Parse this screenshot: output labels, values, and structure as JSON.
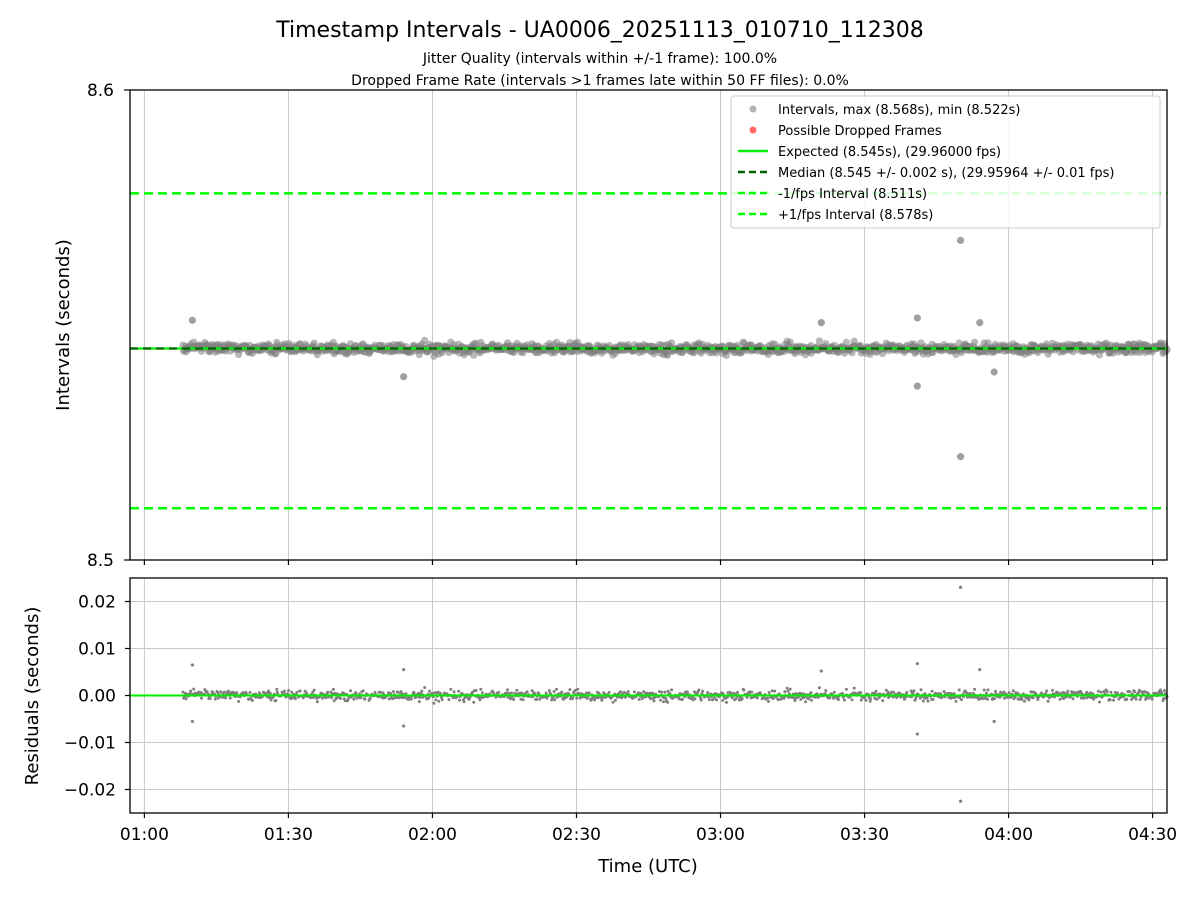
{
  "chart_data": [
    {
      "type": "scatter",
      "title": "Timestamp Intervals - UA0006_20251113_010710_112308",
      "subtitle_jitter": "Jitter Quality (intervals within +/-1 frame): 100.0%",
      "subtitle_dropped": "Dropped Frame Rate (intervals >1 frames late within 50 FF files): 0.0%",
      "ylabel": "Intervals (seconds)",
      "ylim": [
        8.5,
        8.6
      ],
      "y_ticks": [
        "8.5",
        "8.6"
      ],
      "grid": "x",
      "legend_position": "top-right",
      "legend": [
        "Intervals, max (8.568s), min (8.522s)",
        "Possible Dropped Frames",
        "Expected (8.545s), (29.96000 fps)",
        "Median (8.545 +/- 0.002 s), (29.95964 +/- 0.01 fps)",
        "-1/fps Interval (8.511s)",
        "+1/fps Interval (8.578s)"
      ],
      "expected": 8.545,
      "median": 8.545,
      "minus_interval": 8.511,
      "plus_interval": 8.578,
      "interval_max": 8.568,
      "interval_min": 8.522,
      "series_start": "01:08",
      "series_end": "04:33",
      "typical_spread_s": 0.002,
      "notable_points": [
        {
          "x": "01:10",
          "y": 8.551
        },
        {
          "x": "01:54",
          "y": 8.539
        },
        {
          "x": "03:21",
          "y": 8.5505
        },
        {
          "x": "03:41",
          "y": 8.537
        },
        {
          "x": "03:41",
          "y": 8.5515
        },
        {
          "x": "03:50",
          "y": 8.568
        },
        {
          "x": "03:50",
          "y": 8.522
        },
        {
          "x": "03:54",
          "y": 8.5505
        },
        {
          "x": "03:57",
          "y": 8.54
        }
      ]
    },
    {
      "type": "scatter",
      "xlabel": "Time (UTC)",
      "ylabel": "Residuals (seconds)",
      "ylim": [
        -0.025,
        0.025
      ],
      "xlim": [
        "00:57",
        "04:33"
      ],
      "y_ticks": [
        "0.02",
        "0.01",
        "0.00",
        "−0.01",
        "−0.02"
      ],
      "x_ticks": [
        "01:00",
        "01:30",
        "02:00",
        "02:30",
        "03:00",
        "03:30",
        "04:00",
        "04:30"
      ],
      "grid": "both",
      "typical_spread_s": 0.002,
      "notable_points": [
        {
          "x": "01:10",
          "y": 0.0065
        },
        {
          "x": "01:10",
          "y": -0.0055
        },
        {
          "x": "01:54",
          "y": 0.0055
        },
        {
          "x": "01:54",
          "y": -0.0065
        },
        {
          "x": "03:21",
          "y": 0.0052
        },
        {
          "x": "03:41",
          "y": 0.0068
        },
        {
          "x": "03:41",
          "y": -0.0082
        },
        {
          "x": "03:50",
          "y": 0.023
        },
        {
          "x": "03:50",
          "y": -0.0225
        },
        {
          "x": "03:54",
          "y": 0.0055
        },
        {
          "x": "03:57",
          "y": -0.0055
        }
      ]
    }
  ],
  "colors": {
    "points": "#808080",
    "dropped": "#ff4040",
    "expected": "#00ee00",
    "median": "#006400",
    "fps_interval": "#00ff00",
    "grid": "#c8c8c8"
  }
}
